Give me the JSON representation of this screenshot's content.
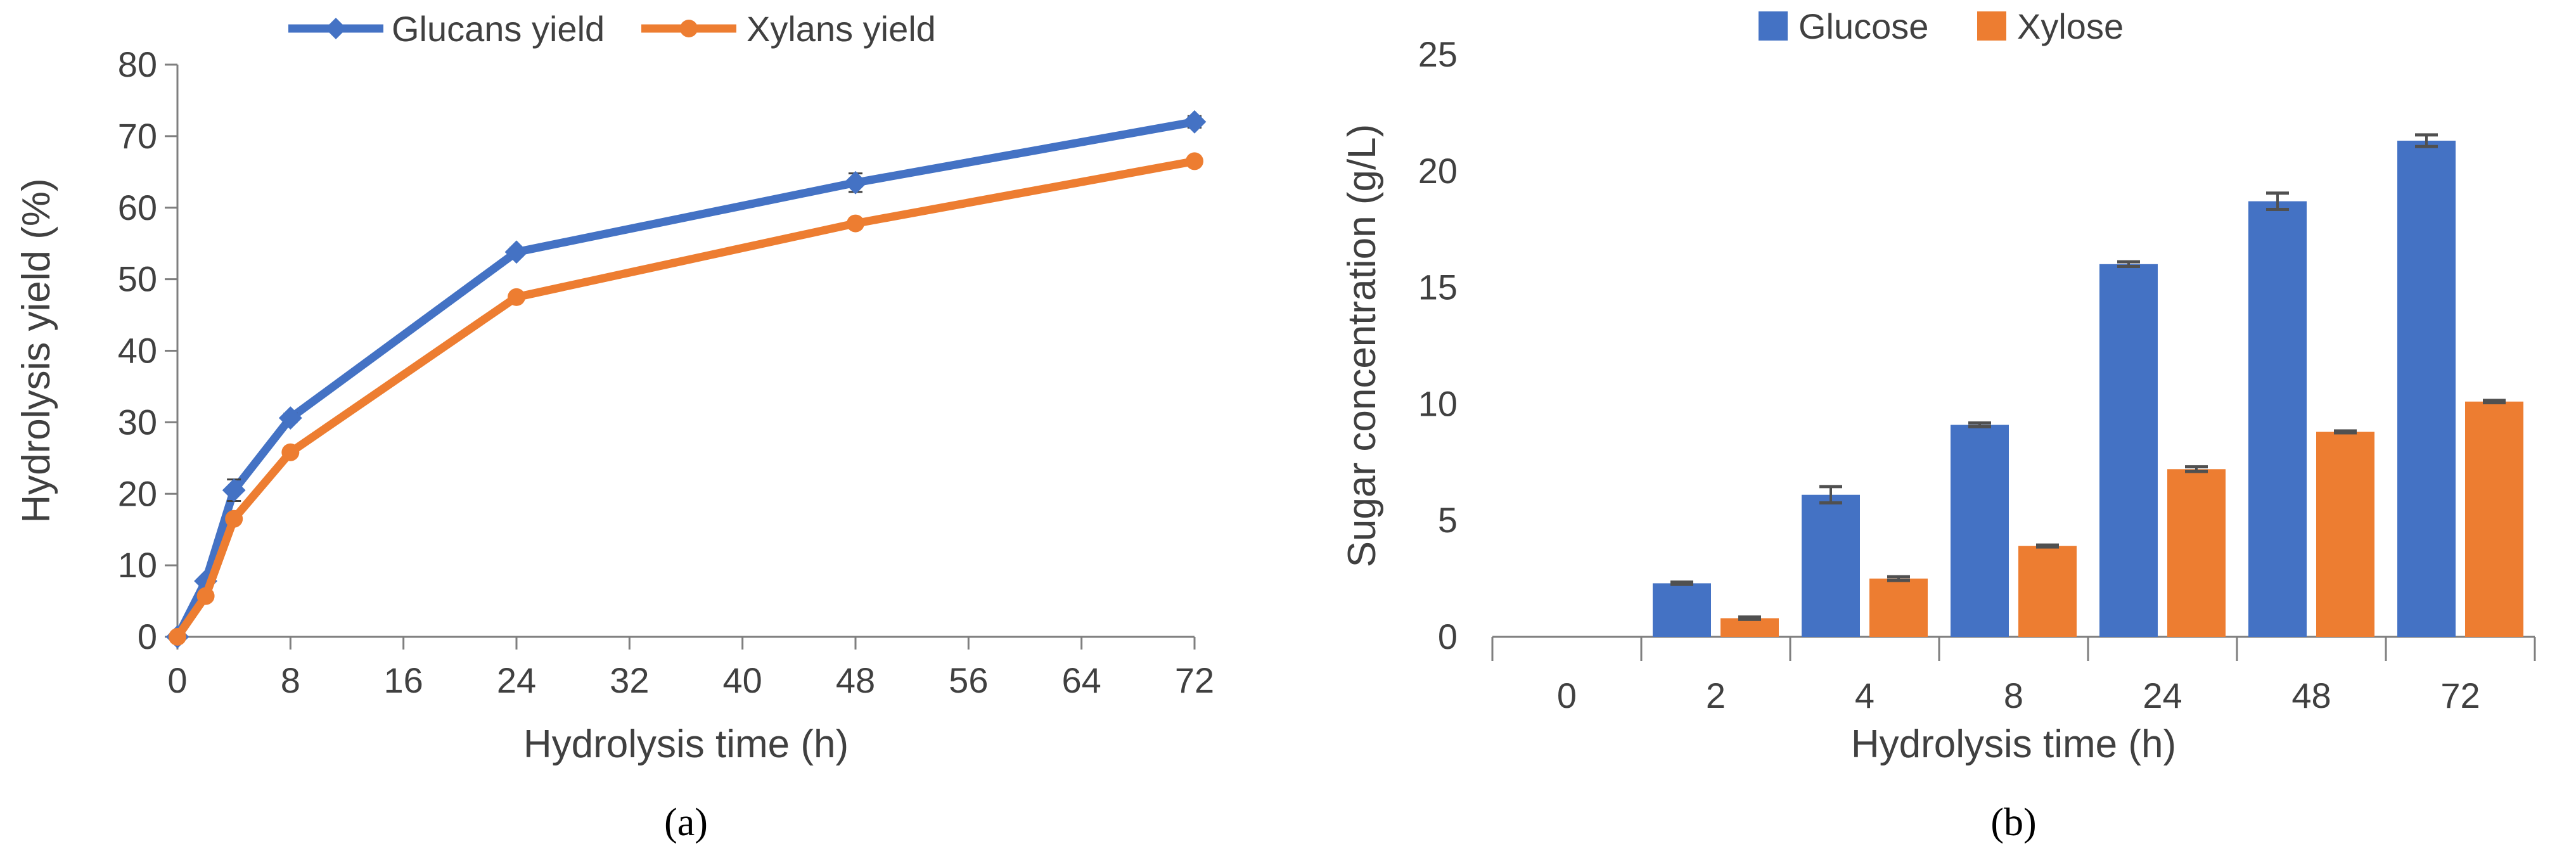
{
  "chart_data": [
    {
      "id": "a",
      "type": "line",
      "caption": "(a)",
      "xlabel": "Hydrolysis time (h)",
      "ylabel": "Hydrolysis yield (%)",
      "xlim": [
        0,
        72
      ],
      "ylim": [
        0,
        80
      ],
      "xticks": [
        0,
        8,
        16,
        24,
        32,
        40,
        48,
        56,
        64,
        72
      ],
      "yticks": [
        0,
        10,
        20,
        30,
        40,
        50,
        60,
        70,
        80
      ],
      "grid": false,
      "legend_position": "top",
      "x": [
        0,
        2,
        4,
        8,
        24,
        48,
        72
      ],
      "series": [
        {
          "name": "Glucans yield",
          "color": "#4472C4",
          "marker": "diamond",
          "values": [
            0,
            7.8,
            20.5,
            30.6,
            53.8,
            63.5,
            72.0
          ],
          "errors": [
            0,
            0.4,
            1.5,
            0.6,
            0.6,
            1.3,
            0.8
          ]
        },
        {
          "name": "Xylans yield",
          "color": "#ED7D31",
          "marker": "circle",
          "values": [
            0,
            5.7,
            16.5,
            25.8,
            47.5,
            57.8,
            66.5
          ],
          "errors": [
            0,
            0.3,
            0.5,
            0.4,
            0.4,
            0.4,
            0.5
          ]
        }
      ]
    },
    {
      "id": "b",
      "type": "bar",
      "caption": "(b)",
      "xlabel": "Hydrolysis time (h)",
      "ylabel": "Sugar concentration (g/L)",
      "ylim": [
        0,
        25
      ],
      "yticks": [
        0,
        5,
        10,
        15,
        20,
        25
      ],
      "grid": false,
      "legend_position": "top",
      "categories": [
        "0",
        "2",
        "4",
        "8",
        "24",
        "48",
        "72"
      ],
      "series": [
        {
          "name": "Glucose",
          "color": "#4472C4",
          "values": [
            0,
            2.3,
            6.1,
            9.1,
            16.0,
            18.7,
            21.3
          ],
          "errors": [
            0,
            0.05,
            0.35,
            0.08,
            0.1,
            0.35,
            0.25
          ]
        },
        {
          "name": "Xylose",
          "color": "#ED7D31",
          "values": [
            0,
            0.8,
            2.5,
            3.9,
            7.2,
            8.8,
            10.1
          ],
          "errors": [
            0,
            0.05,
            0.08,
            0.04,
            0.1,
            0.04,
            0.05
          ]
        }
      ]
    }
  ]
}
